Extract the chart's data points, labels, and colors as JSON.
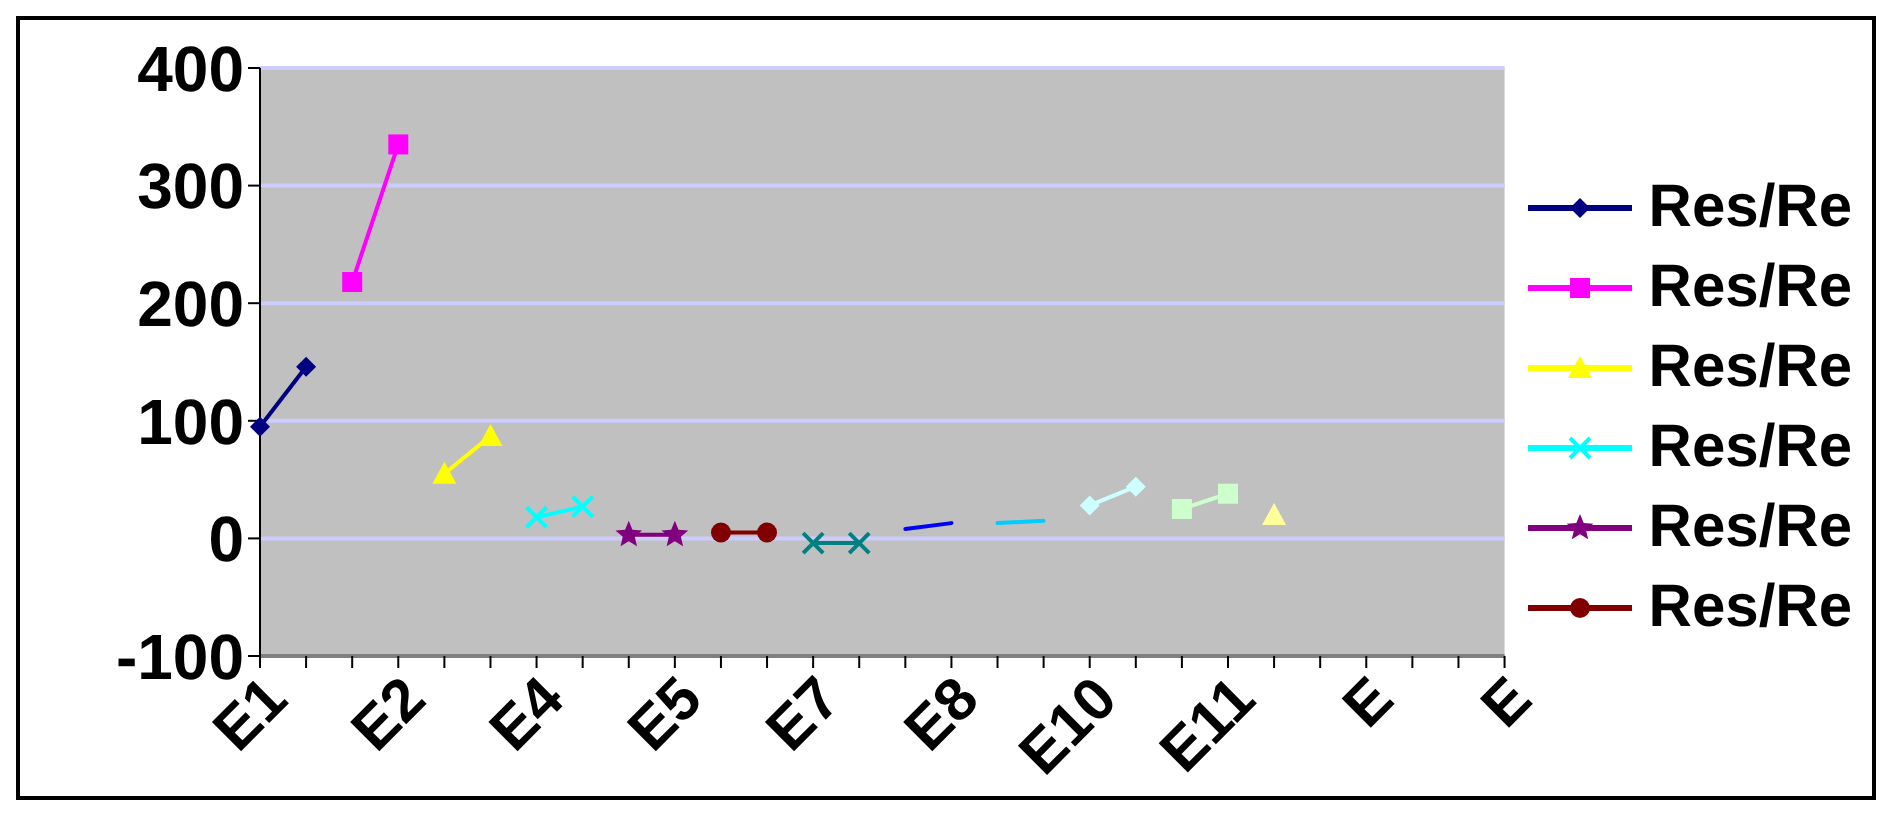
{
  "chart_data": {
    "type": "line",
    "categories": [
      "E1",
      null,
      null,
      "E2",
      null,
      null,
      "E4",
      null,
      null,
      "E5",
      null,
      null,
      "E7",
      null,
      null,
      "E8",
      null,
      null,
      "E10",
      null,
      null,
      "E11",
      null,
      null,
      "E",
      null,
      null,
      "E"
    ],
    "series": [
      {
        "name": "Res/Re",
        "color": "#000080",
        "marker": "diamond",
        "values": [
          95,
          146,
          null,
          null,
          null,
          null,
          null,
          null,
          null,
          null,
          null,
          null,
          null,
          null,
          null,
          null,
          null,
          null,
          null,
          null,
          null,
          null,
          null,
          null,
          null,
          null,
          null,
          null
        ]
      },
      {
        "name": "Res/Re",
        "color": "#ff00ff",
        "marker": "square",
        "values": [
          null,
          null,
          218,
          335,
          null,
          null,
          null,
          null,
          null,
          null,
          null,
          null,
          null,
          null,
          null,
          null,
          null,
          null,
          null,
          null,
          null,
          null,
          null,
          null,
          null,
          null,
          null,
          null
        ]
      },
      {
        "name": "Res/Re",
        "color": "#ffff00",
        "marker": "triangle",
        "values": [
          null,
          null,
          null,
          null,
          55,
          87,
          null,
          null,
          null,
          null,
          null,
          null,
          null,
          null,
          null,
          null,
          null,
          null,
          null,
          null,
          null,
          null,
          null,
          null,
          null,
          null,
          null,
          null
        ]
      },
      {
        "name": "Res/Re",
        "color": "#00ffff",
        "marker": "cross",
        "values": [
          null,
          null,
          null,
          null,
          null,
          null,
          18,
          27,
          null,
          null,
          null,
          null,
          null,
          null,
          null,
          null,
          null,
          null,
          null,
          null,
          null,
          null,
          null,
          null,
          null,
          null,
          null,
          null
        ]
      },
      {
        "name": "Res/Re",
        "color": "#800080",
        "marker": "star",
        "values": [
          null,
          null,
          null,
          null,
          null,
          null,
          null,
          null,
          3,
          3,
          null,
          null,
          null,
          null,
          null,
          null,
          null,
          null,
          null,
          null,
          null,
          null,
          null,
          null,
          null,
          null,
          null,
          null
        ]
      },
      {
        "name": "Res/Re",
        "color": "#800000",
        "marker": "circle",
        "values": [
          null,
          null,
          null,
          null,
          null,
          null,
          null,
          null,
          null,
          null,
          5,
          5,
          null,
          null,
          null,
          null,
          null,
          null,
          null,
          null,
          null,
          null,
          null,
          null,
          null,
          null,
          null,
          null
        ]
      },
      {
        "color": "#008080",
        "marker": "cross",
        "values": [
          null,
          null,
          null,
          null,
          null,
          null,
          null,
          null,
          null,
          null,
          null,
          null,
          -4,
          -4,
          null,
          null,
          null,
          null,
          null,
          null,
          null,
          null,
          null,
          null,
          null,
          null,
          null,
          null
        ]
      },
      {
        "color": "#0000ff",
        "marker": "none",
        "values": [
          null,
          null,
          null,
          null,
          null,
          null,
          null,
          null,
          null,
          null,
          null,
          null,
          null,
          null,
          8,
          13,
          null,
          null,
          null,
          null,
          null,
          null,
          null,
          null,
          null,
          null,
          null,
          null
        ]
      },
      {
        "color": "#00ccff",
        "marker": "none",
        "values": [
          null,
          null,
          null,
          null,
          null,
          null,
          null,
          null,
          null,
          null,
          null,
          null,
          null,
          null,
          null,
          null,
          13,
          15,
          null,
          null,
          null,
          null,
          null,
          null,
          null,
          null,
          null,
          null
        ]
      },
      {
        "color": "#ccffff",
        "marker": "diamond",
        "values": [
          null,
          null,
          null,
          null,
          null,
          null,
          null,
          null,
          null,
          null,
          null,
          null,
          null,
          null,
          null,
          null,
          null,
          null,
          28,
          44,
          null,
          null,
          null,
          null,
          null,
          null,
          null,
          null
        ]
      },
      {
        "color": "#ccffcc",
        "marker": "square",
        "values": [
          null,
          null,
          null,
          null,
          null,
          null,
          null,
          null,
          null,
          null,
          null,
          null,
          null,
          null,
          null,
          null,
          null,
          null,
          null,
          null,
          25,
          38,
          null,
          null,
          null,
          null,
          null,
          null
        ]
      },
      {
        "color": "#ffff99",
        "marker": "triangle",
        "values": [
          null,
          null,
          null,
          null,
          null,
          null,
          null,
          null,
          null,
          null,
          null,
          null,
          null,
          null,
          null,
          null,
          null,
          null,
          null,
          null,
          null,
          null,
          20,
          null,
          null,
          null,
          null,
          null
        ]
      }
    ],
    "ylim": [
      -100,
      400
    ],
    "yticks": [
      -100,
      0,
      100,
      200,
      300,
      400
    ],
    "grid": "y",
    "legend": "right"
  }
}
